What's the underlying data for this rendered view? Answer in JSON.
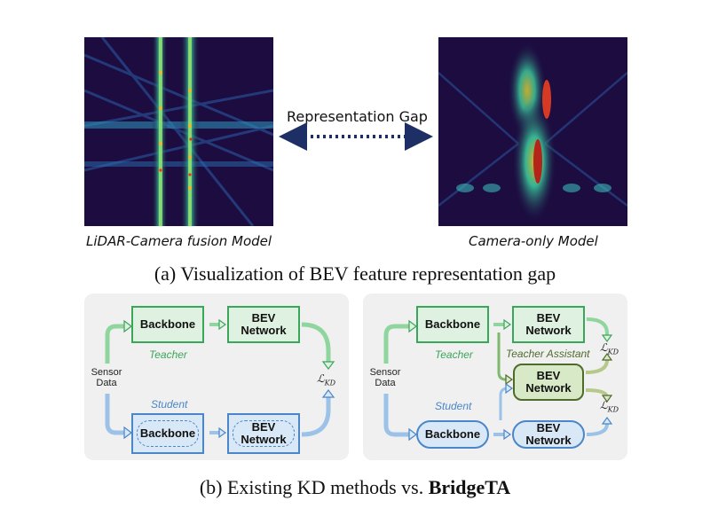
{
  "top": {
    "left_label": "LiDAR-Camera fusion Model",
    "right_label": "Camera-only Model",
    "gap_label": "Representation Gap",
    "caption": "(a) Visualization of BEV feature representation gap"
  },
  "bottom": {
    "caption_prefix": "(b) Existing KD methods vs. ",
    "caption_bold": "BridgeTA",
    "left": {
      "backbone_t": "Backbone",
      "bev_t_line1": "BEV",
      "bev_t_line2": "Network",
      "teacher": "Teacher",
      "sensor_line1": "Sensor",
      "sensor_line2": "Data",
      "student": "Student",
      "backbone_s": "Backbone",
      "bev_s_line1": "BEV",
      "bev_s_line2": "Network",
      "loss": "ℒ",
      "loss_sub": "KD"
    },
    "right": {
      "backbone_t": "Backbone",
      "bev_t_line1": "BEV",
      "bev_t_line2": "Network",
      "teacher": "Teacher",
      "ta_label": "Teacher Assistant",
      "ta_line1": "BEV",
      "ta_line2": "Network",
      "sensor_line1": "Sensor",
      "sensor_line2": "Data",
      "student": "Student",
      "backbone_s": "Backbone",
      "bev_s_line1": "BEV",
      "bev_s_line2": "Network",
      "loss": "ℒ",
      "loss_sub": "KD"
    }
  },
  "colors": {
    "teacher": "#3aa65a",
    "student": "#4a86c8",
    "assistant": "#4f6b2c",
    "gap_arrow": "#1e2f66"
  }
}
